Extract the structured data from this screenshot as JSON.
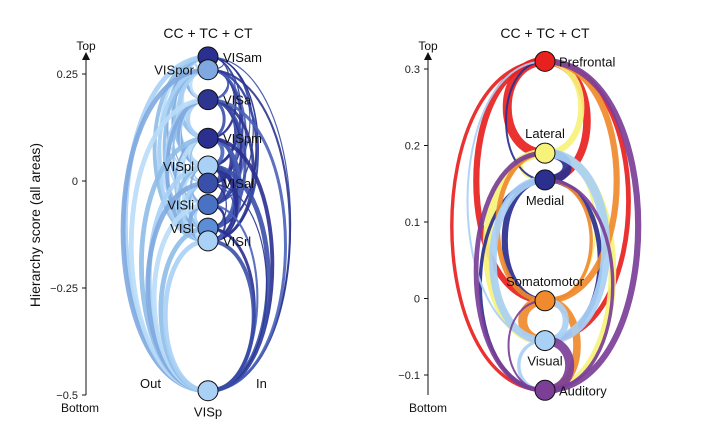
{
  "chart_data": [
    {
      "type": "diagram",
      "title": "CC + TC + CT",
      "ylabel": "Hierarchy score (all areas)",
      "axis_top_label": "Top",
      "axis_bottom_label": "Bottom",
      "ylim": [
        -0.5,
        0.28
      ],
      "yticks": [
        0.25,
        0,
        -0.25,
        -0.5
      ],
      "ytick_labels": [
        "0.25",
        "0",
        "−0.25",
        "−0.5"
      ],
      "out_label": "Out",
      "in_label": "In",
      "nodes": [
        {
          "name": "VISam",
          "y": 0.29,
          "color": "#2b2f8f",
          "label_side": "right"
        },
        {
          "name": "VISpor",
          "y": 0.26,
          "color": "#7fa8e0",
          "label_side": "left"
        },
        {
          "name": "VISa",
          "y": 0.19,
          "color": "#2c3590",
          "label_side": "right"
        },
        {
          "name": "VISpm",
          "y": 0.1,
          "color": "#2b2f8f",
          "label_side": "right"
        },
        {
          "name": "VISpl",
          "y": 0.035,
          "color": "#a9d0f5",
          "label_side": "left"
        },
        {
          "name": "VISal",
          "y": -0.005,
          "color": "#3a4fa8",
          "label_side": "right"
        },
        {
          "name": "VISli",
          "y": -0.055,
          "color": "#4a72c4",
          "label_side": "left"
        },
        {
          "name": "VISl",
          "y": -0.11,
          "color": "#5b8ed6",
          "label_side": "left"
        },
        {
          "name": "VISrl",
          "y": -0.14,
          "color": "#a9d0f5",
          "label_side": "right"
        },
        {
          "name": "VISp",
          "y": -0.49,
          "color": "#a9d0f5",
          "label_side": "below"
        }
      ],
      "edge_colors": {
        "out": "#8fbde8",
        "in": "#2b2f8f"
      }
    },
    {
      "type": "diagram",
      "title": "CC + TC + CT",
      "axis_top_label": "Top",
      "axis_bottom_label": "Bottom",
      "ylim": [
        -0.12,
        0.32
      ],
      "yticks": [
        0.3,
        0.2,
        0.1,
        0,
        -0.1
      ],
      "ytick_labels": [
        "0.3",
        "0.2",
        "0.1",
        "0",
        "−0.1"
      ],
      "nodes": [
        {
          "name": "Prefrontal",
          "y": 0.31,
          "color": "#e8211f",
          "label_side": "right"
        },
        {
          "name": "Lateral",
          "y": 0.19,
          "color": "#f6f27a",
          "label_side": "above"
        },
        {
          "name": "Medial",
          "y": 0.155,
          "color": "#2b2f8f",
          "label_side": "below"
        },
        {
          "name": "Somatomotor",
          "y": -0.003,
          "color": "#f08a2c",
          "label_side": "above"
        },
        {
          "name": "Visual",
          "y": -0.055,
          "color": "#a9d0f5",
          "label_side": "below"
        },
        {
          "name": "Auditory",
          "y": -0.12,
          "color": "#7b3f98",
          "label_side": "right"
        }
      ]
    }
  ]
}
